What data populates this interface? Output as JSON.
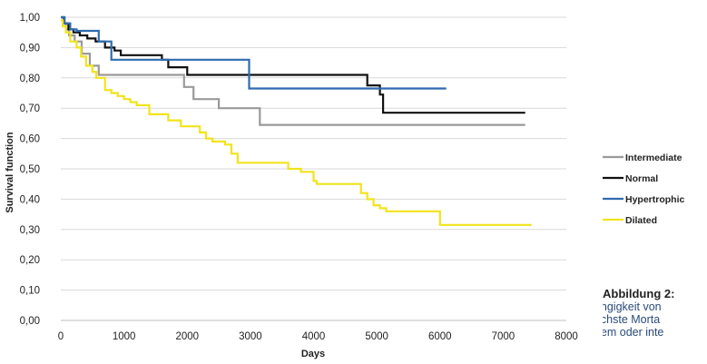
{
  "chart_data": {
    "type": "line",
    "step": true,
    "xlabel": "Days",
    "ylabel": "Survival function",
    "xlim": [
      0,
      8000
    ],
    "ylim": [
      0,
      1
    ],
    "x_ticks": [
      "0",
      "1000",
      "2000",
      "3000",
      "4000",
      "5000",
      "6000",
      "7000",
      "8000"
    ],
    "y_ticks": [
      "0,00",
      "0,10",
      "0,20",
      "0,30",
      "0,40",
      "0,50",
      "0,60",
      "0,70",
      "0,80",
      "0,90",
      "1,00"
    ],
    "grid": "horizontal",
    "legend_position": "right",
    "series": [
      {
        "name": "Intermediate",
        "color": "#9a9a9a",
        "x": [
          0,
          40,
          80,
          130,
          220,
          330,
          460,
          600,
          800,
          1700,
          1950,
          2100,
          2500,
          2800,
          3150,
          7350
        ],
        "y": [
          1.0,
          0.98,
          0.96,
          0.94,
          0.92,
          0.88,
          0.84,
          0.81,
          0.81,
          0.81,
          0.77,
          0.73,
          0.7,
          0.7,
          0.645,
          0.645
        ]
      },
      {
        "name": "Normal",
        "color": "#111111",
        "x": [
          0,
          50,
          120,
          200,
          300,
          420,
          550,
          700,
          850,
          950,
          1300,
          1600,
          1700,
          2000,
          2200,
          4800,
          4850,
          5050,
          5100,
          7350
        ],
        "y": [
          1.0,
          0.98,
          0.96,
          0.95,
          0.94,
          0.93,
          0.92,
          0.9,
          0.89,
          0.875,
          0.875,
          0.86,
          0.835,
          0.81,
          0.81,
          0.81,
          0.775,
          0.745,
          0.685,
          0.685
        ]
      },
      {
        "name": "Hypertrophic",
        "color": "#2f6bb0",
        "x": [
          0,
          60,
          150,
          250,
          600,
          800,
          1050,
          1200,
          1600,
          2950,
          2980,
          6100
        ],
        "y": [
          1.0,
          0.98,
          0.96,
          0.955,
          0.92,
          0.86,
          0.86,
          0.86,
          0.86,
          0.86,
          0.765,
          0.765
        ]
      },
      {
        "name": "Dilated",
        "color": "#f2e31b",
        "x": [
          0,
          30,
          80,
          150,
          250,
          320,
          400,
          500,
          560,
          700,
          800,
          900,
          1000,
          1100,
          1200,
          1400,
          1600,
          1700,
          1900,
          2200,
          2300,
          2400,
          2600,
          2700,
          2800,
          3300,
          3400,
          3600,
          3800,
          4000,
          4050,
          4500,
          4700,
          4750,
          4850,
          4950,
          5050,
          5150,
          5350,
          5950,
          6000,
          7450
        ],
        "y": [
          0.99,
          0.97,
          0.95,
          0.92,
          0.9,
          0.87,
          0.84,
          0.82,
          0.8,
          0.76,
          0.75,
          0.74,
          0.73,
          0.72,
          0.71,
          0.68,
          0.68,
          0.66,
          0.64,
          0.62,
          0.6,
          0.59,
          0.58,
          0.55,
          0.52,
          0.52,
          0.52,
          0.5,
          0.49,
          0.46,
          0.45,
          0.45,
          0.45,
          0.42,
          0.4,
          0.38,
          0.37,
          0.36,
          0.36,
          0.36,
          0.315,
          0.315
        ]
      }
    ]
  },
  "caption": {
    "title": "Abbildung 2:",
    "line1": "hängigkeit von",
    "line2": "höchste Morta",
    "line3": "phem oder inte"
  }
}
